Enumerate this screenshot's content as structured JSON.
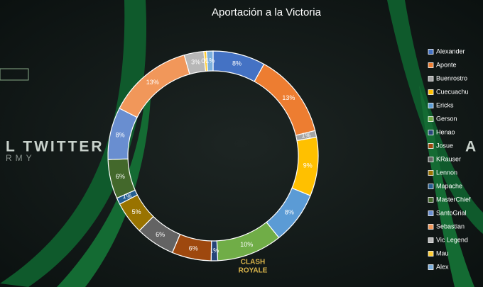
{
  "chart_data": {
    "type": "donut",
    "title": "Aportación a la Victoria",
    "categories": [
      "Alexander",
      "Aponte",
      "Buenrostro",
      "Cuecuachu",
      "Ericks",
      "Gerson",
      "Henao",
      "Josue",
      "KRauser",
      "Lennon",
      "Mapache",
      "MasterChief",
      "SantoGrial",
      "Sebastian",
      "Vic Legend",
      "Mau",
      "Alex"
    ],
    "values": [
      8,
      13,
      1,
      9,
      8,
      10,
      1,
      6,
      6,
      5,
      1,
      6,
      8,
      13,
      3,
      0.4,
      1
    ],
    "value_labels": [
      "8%",
      "13%",
      "1%",
      "9%",
      "8%",
      "10%",
      "1%",
      "6%",
      "6%",
      "5%",
      "1%",
      "6%",
      "8%",
      "13%",
      "3%",
      "0%",
      "1%"
    ],
    "colors": [
      "#4472c4",
      "#ed7d31",
      "#a5a5a5",
      "#ffc000",
      "#5b9bd5",
      "#70ad47",
      "#264478",
      "#9e480e",
      "#636363",
      "#997300",
      "#255e91",
      "#43682b",
      "#698ed0",
      "#f1975a",
      "#b7b7b7",
      "#ffcd33",
      "#7cafdd"
    ],
    "legend": "right"
  },
  "background": {
    "left_text": "L TWITTER",
    "left_sub": "RMY",
    "right_text": "A",
    "logo_top": "CLASH",
    "logo_bottom": "ROYALE"
  }
}
